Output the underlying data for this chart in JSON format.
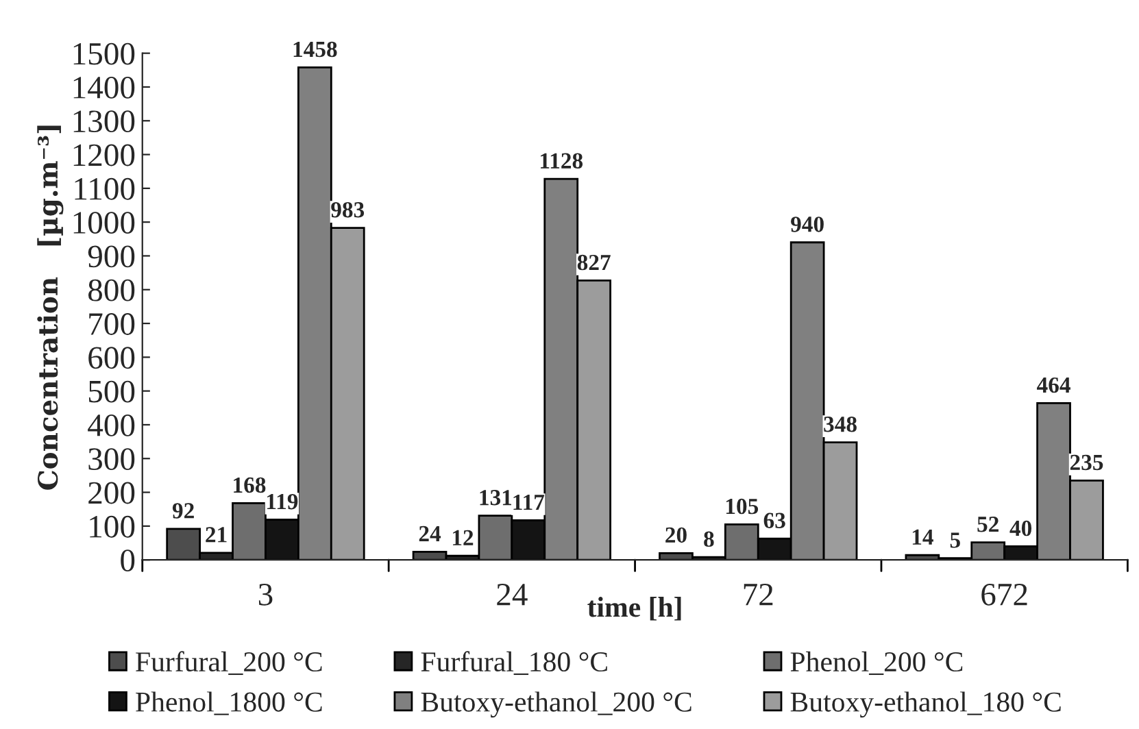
{
  "chart_data": {
    "type": "bar",
    "xlabel": "time [h]",
    "ylabel": "Concentration   [µg.m⁻³]",
    "categories": [
      "3",
      "24",
      "72",
      "672"
    ],
    "series": [
      {
        "name": "Furfural_200 °C",
        "color": "#4d4d4d",
        "values": [
          92,
          24,
          20,
          14
        ]
      },
      {
        "name": "Furfural_180 °C",
        "color": "#262626",
        "values": [
          21,
          12,
          8,
          5
        ]
      },
      {
        "name": "Phenol_200 °C",
        "color": "#6e6e6e",
        "values": [
          168,
          131,
          105,
          52
        ]
      },
      {
        "name": "Phenol_1800 °C",
        "color": "#141414",
        "values": [
          119,
          117,
          63,
          40
        ]
      },
      {
        "name": "Butoxy-ethanol_200 °C",
        "color": "#808080",
        "values": [
          1458,
          1128,
          940,
          464
        ]
      },
      {
        "name": "Butoxy-ethanol_180 °C",
        "color": "#9c9c9c",
        "values": [
          983,
          827,
          348,
          235
        ]
      }
    ],
    "ylim": [
      0,
      1500
    ],
    "yticks": [
      0,
      100,
      200,
      300,
      400,
      500,
      600,
      700,
      800,
      900,
      1000,
      1100,
      1200,
      1300,
      1400,
      1500
    ],
    "data_labels": true,
    "legend": "bottom",
    "grid": false
  }
}
